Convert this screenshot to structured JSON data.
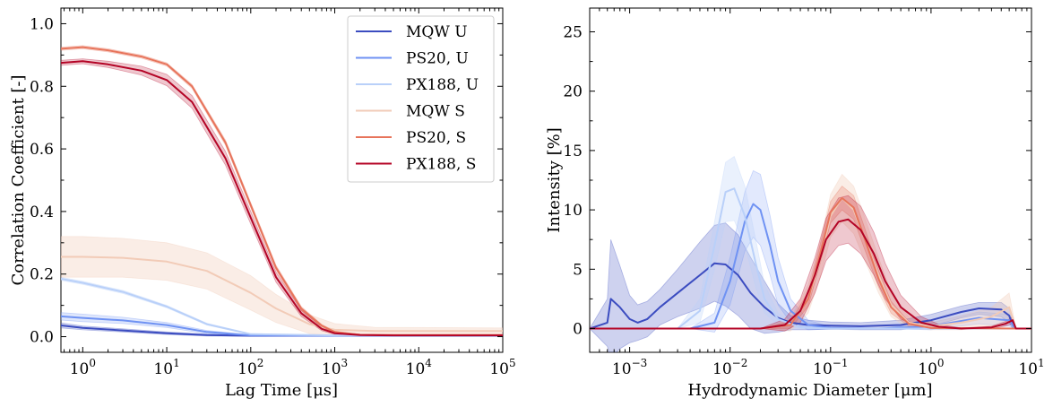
{
  "chart_data": [
    {
      "type": "line",
      "xscale": "log",
      "xlim": [
        0.55,
        100000
      ],
      "ylim": [
        -0.05,
        1.05
      ],
      "xlabel": "Lag Time [μs]",
      "ylabel": "Correlation Coefficient [-]",
      "xticks": [
        {
          "value": 1,
          "base": "10",
          "exp": "0"
        },
        {
          "value": 10,
          "base": "10",
          "exp": "1"
        },
        {
          "value": 100,
          "base": "10",
          "exp": "2"
        },
        {
          "value": 1000,
          "base": "10",
          "exp": "3"
        },
        {
          "value": 10000,
          "base": "10",
          "exp": "4"
        },
        {
          "value": 100000,
          "base": "10",
          "exp": "5"
        }
      ],
      "yticks": [
        {
          "value": 0,
          "label": "0.0"
        },
        {
          "value": 0.2,
          "label": "0.2"
        },
        {
          "value": 0.4,
          "label": "0.4"
        },
        {
          "value": 0.6,
          "label": "0.6"
        },
        {
          "value": 0.8,
          "label": "0.8"
        },
        {
          "value": 1.0,
          "label": "1.0"
        }
      ],
      "legend": {
        "position": "top-right"
      },
      "series": [
        {
          "name": "MQW U",
          "color": "#3b4cc0",
          "band_alpha": 0.22,
          "x": [
            0.55,
            1,
            3,
            10,
            30,
            100,
            1000,
            100000
          ],
          "y": [
            0.036,
            0.028,
            0.02,
            0.011,
            0.005,
            0.003,
            0.003,
            0.003
          ],
          "err": [
            0.008,
            0.006,
            0.005,
            0.004,
            0.003,
            0.002,
            0.002,
            0.002
          ]
        },
        {
          "name": "PS20, U",
          "color": "#6f92f3",
          "band_alpha": 0.22,
          "x": [
            0.55,
            1,
            3,
            10,
            30,
            100,
            1000,
            100000
          ],
          "y": [
            0.065,
            0.06,
            0.052,
            0.037,
            0.015,
            0.004,
            0.003,
            0.003
          ],
          "err": [
            0.012,
            0.012,
            0.01,
            0.008,
            0.005,
            0.002,
            0.002,
            0.002
          ]
        },
        {
          "name": "PX188, U",
          "color": "#b9d0f9",
          "band_alpha": 0.3,
          "x": [
            0.55,
            1,
            3,
            10,
            30,
            100,
            1000,
            100000
          ],
          "y": [
            0.185,
            0.172,
            0.143,
            0.096,
            0.04,
            0.008,
            0.004,
            0.004
          ],
          "err": [
            0.005,
            0.005,
            0.005,
            0.004,
            0.003,
            0.002,
            0.002,
            0.002
          ]
        },
        {
          "name": "MQW S",
          "color": "#f2cbb7",
          "band_alpha": 0.35,
          "x": [
            0.55,
            1,
            3,
            10,
            30,
            100,
            200,
            500,
            1000,
            3000,
            100000
          ],
          "y": [
            0.255,
            0.255,
            0.252,
            0.24,
            0.21,
            0.14,
            0.09,
            0.04,
            0.022,
            0.018,
            0.018
          ],
          "err": [
            0.065,
            0.065,
            0.062,
            0.06,
            0.058,
            0.055,
            0.045,
            0.03,
            0.02,
            0.012,
            0.01
          ]
        },
        {
          "name": "PS20, S",
          "color": "#e7745b",
          "band_alpha": 0.2,
          "x": [
            0.55,
            1,
            2,
            5,
            10,
            20,
            50,
            100,
            200,
            400,
            700,
            1000,
            2000,
            5000,
            100000
          ],
          "y": [
            0.92,
            0.925,
            0.915,
            0.895,
            0.87,
            0.8,
            0.62,
            0.42,
            0.22,
            0.09,
            0.035,
            0.015,
            0.006,
            0.005,
            0.005
          ],
          "err": [
            0.005,
            0.005,
            0.005,
            0.005,
            0.005,
            0.006,
            0.008,
            0.008,
            0.008,
            0.006,
            0.004,
            0.003,
            0.002,
            0.002,
            0.002
          ]
        },
        {
          "name": "PX188, S",
          "color": "#b40426",
          "band_alpha": 0.22,
          "x": [
            0.55,
            1,
            2,
            5,
            10,
            20,
            50,
            100,
            200,
            400,
            700,
            1000,
            2000,
            5000,
            100000
          ],
          "y": [
            0.875,
            0.88,
            0.87,
            0.85,
            0.82,
            0.75,
            0.57,
            0.38,
            0.19,
            0.075,
            0.025,
            0.011,
            0.005,
            0.004,
            0.004
          ],
          "err": [
            0.008,
            0.008,
            0.01,
            0.014,
            0.018,
            0.02,
            0.022,
            0.02,
            0.016,
            0.01,
            0.006,
            0.004,
            0.003,
            0.002,
            0.002
          ]
        }
      ]
    },
    {
      "type": "line",
      "xscale": "log",
      "xlim": [
        0.0004,
        10
      ],
      "ylim": [
        -2,
        27
      ],
      "xlabel": "Hydrodynamic Diameter [μm]",
      "ylabel": "Intensity [%]",
      "xticks": [
        {
          "value": 0.001,
          "base": "10",
          "exp": "−3"
        },
        {
          "value": 0.01,
          "base": "10",
          "exp": "−2"
        },
        {
          "value": 0.1,
          "base": "10",
          "exp": "−1"
        },
        {
          "value": 1,
          "base": "10",
          "exp": "0"
        },
        {
          "value": 10,
          "base": "10",
          "exp": "1"
        }
      ],
      "yticks": [
        {
          "value": 0,
          "label": "0"
        },
        {
          "value": 5,
          "label": "5"
        },
        {
          "value": 10,
          "label": "10"
        },
        {
          "value": 15,
          "label": "15"
        },
        {
          "value": 20,
          "label": "20"
        },
        {
          "value": 25,
          "label": "25"
        }
      ],
      "series": [
        {
          "name": "MQW U",
          "color": "#3b4cc0",
          "band_alpha": 0.25,
          "x": [
            0.0004,
            0.0006,
            0.00065,
            0.0008,
            0.001,
            0.0012,
            0.0015,
            0.002,
            0.003,
            0.005,
            0.007,
            0.009,
            0.012,
            0.016,
            0.022,
            0.03,
            0.04,
            0.06,
            0.1,
            0.2,
            0.5,
            1,
            2,
            3,
            5,
            6,
            6.5,
            7
          ],
          "y": [
            0,
            0.5,
            2.5,
            1.8,
            0.8,
            0.5,
            0.8,
            1.8,
            3.0,
            4.5,
            5.5,
            5.4,
            4.5,
            3.0,
            1.8,
            0.9,
            0.5,
            0.3,
            0.25,
            0.2,
            0.3,
            0.7,
            1.4,
            1.7,
            1.6,
            1.1,
            0.3,
            0
          ],
          "err": [
            0,
            2,
            5,
            3.5,
            2,
            1.5,
            1.5,
            1.5,
            2.0,
            2.8,
            3.2,
            3.5,
            3.4,
            3.0,
            2.2,
            1.2,
            0.6,
            0.4,
            0.3,
            0.3,
            0.4,
            0.5,
            0.5,
            0.5,
            0.6,
            0.6,
            0.3,
            0
          ]
        },
        {
          "name": "PS20, U",
          "color": "#6f92f3",
          "band_alpha": 0.2,
          "x": [
            0.0004,
            0.004,
            0.007,
            0.01,
            0.014,
            0.017,
            0.02,
            0.025,
            0.03,
            0.04,
            0.06,
            0.1,
            0.3,
            1,
            3,
            6,
            7
          ],
          "y": [
            0,
            0,
            0.5,
            4.0,
            9.0,
            10.5,
            10.0,
            7.0,
            4.0,
            1.5,
            0.3,
            0.05,
            0,
            0.2,
            0.9,
            0.7,
            0
          ],
          "err": [
            0,
            0,
            0.8,
            2.0,
            2.5,
            2.8,
            3.0,
            2.5,
            2.0,
            1.0,
            0.4,
            0.1,
            0,
            0.3,
            0.5,
            0.5,
            0
          ]
        },
        {
          "name": "PX188, U",
          "color": "#b9d0f9",
          "band_alpha": 0.3,
          "x": [
            0.0004,
            0.003,
            0.005,
            0.007,
            0.009,
            0.011,
            0.014,
            0.018,
            0.022,
            0.03,
            0.05,
            0.1,
            1,
            7
          ],
          "y": [
            0,
            0,
            1.5,
            7.0,
            11.5,
            11.8,
            9.5,
            5.5,
            2.5,
            0.8,
            0.1,
            0,
            0,
            0
          ],
          "err": [
            0,
            0,
            1.0,
            2.0,
            2.5,
            2.7,
            2.5,
            2.0,
            1.2,
            0.5,
            0.1,
            0,
            0,
            0
          ]
        },
        {
          "name": "MQW S",
          "color": "#f2cbb7",
          "band_alpha": 0.35,
          "x": [
            0.0004,
            0.02,
            0.04,
            0.06,
            0.08,
            0.1,
            0.13,
            0.17,
            0.22,
            0.3,
            0.4,
            0.6,
            1,
            2,
            4,
            6,
            7
          ],
          "y": [
            0,
            0,
            0.3,
            2.5,
            6.0,
            9.5,
            11.0,
            10.0,
            7.5,
            4.5,
            2.0,
            0.5,
            0.2,
            0.5,
            1.0,
            1.8,
            0
          ],
          "err": [
            0,
            0,
            0.5,
            1.2,
            1.5,
            1.8,
            2.0,
            2.0,
            1.8,
            1.5,
            1.0,
            0.5,
            0.3,
            0.6,
            0.8,
            1.2,
            0
          ]
        },
        {
          "name": "PS20, S",
          "color": "#e7745b",
          "band_alpha": 0.25,
          "x": [
            0.0004,
            0.02,
            0.04,
            0.06,
            0.08,
            0.1,
            0.13,
            0.17,
            0.22,
            0.3,
            0.4,
            0.6,
            1,
            7
          ],
          "y": [
            0,
            0,
            0.3,
            2.5,
            6.5,
            9.8,
            11.0,
            10.2,
            7.5,
            4.2,
            1.8,
            0.4,
            0.05,
            0
          ],
          "err": [
            0,
            0,
            0.3,
            0.6,
            0.8,
            0.9,
            1.0,
            1.0,
            0.9,
            0.7,
            0.5,
            0.2,
            0.05,
            0
          ]
        },
        {
          "name": "PX188, S",
          "color": "#b40426",
          "band_alpha": 0.22,
          "x": [
            0.0004,
            0.02,
            0.035,
            0.05,
            0.07,
            0.09,
            0.12,
            0.15,
            0.2,
            0.27,
            0.35,
            0.5,
            0.8,
            1.2,
            2,
            4,
            5.5,
            6.5,
            7,
            10
          ],
          "y": [
            0,
            0,
            0.3,
            1.5,
            4.5,
            7.5,
            9.0,
            9.2,
            8.3,
            6.3,
            4.0,
            1.8,
            0.5,
            0.15,
            0,
            0.1,
            0.4,
            0.7,
            0,
            0
          ],
          "err": [
            0,
            0,
            0.5,
            1.0,
            1.5,
            1.8,
            2.0,
            2.0,
            2.0,
            1.8,
            1.5,
            1.0,
            0.5,
            0.2,
            0.05,
            0.1,
            0.2,
            0.3,
            0,
            0
          ]
        }
      ]
    }
  ]
}
